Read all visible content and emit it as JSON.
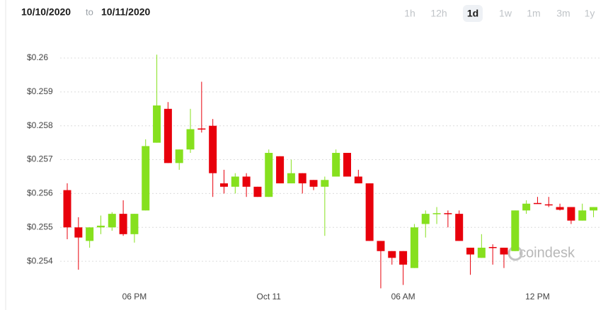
{
  "header": {
    "from_date": "10/10/2020",
    "separator": "to",
    "to_date": "10/11/2020",
    "ranges": [
      "1h",
      "12h",
      "1d",
      "1w",
      "1m",
      "3m",
      "1y"
    ],
    "active_range": "1d"
  },
  "watermark": "coindesk",
  "chart_data": {
    "type": "candlestick",
    "categories": [
      null,
      null,
      null,
      null,
      null,
      null,
      "06 PM",
      null,
      null,
      null,
      null,
      null,
      null,
      null,
      null,
      null,
      null,
      null,
      "Oct 11",
      null,
      null,
      null,
      null,
      null,
      null,
      null,
      null,
      null,
      null,
      null,
      "06 AM",
      null,
      null,
      null,
      null,
      null,
      null,
      null,
      null,
      null,
      null,
      null,
      "12 PM",
      null,
      null,
      null,
      null,
      null
    ],
    "open": [
      0.2561,
      0.255,
      0.2546,
      0.255,
      0.255,
      0.2554,
      0.2548,
      0.2555,
      0.2575,
      0.2585,
      0.2569,
      0.2573,
      0.25792,
      0.258,
      0.2563,
      0.2562,
      0.2565,
      0.2562,
      0.2559,
      0.2571,
      0.2563,
      0.2566,
      0.2564,
      0.2562,
      0.2565,
      0.2572,
      0.2565,
      0.2563,
      0.2546,
      0.2543,
      0.2543,
      0.2538,
      0.2551,
      0.2554,
      0.25542,
      0.2554,
      0.2544,
      0.2541,
      0.25442,
      0.2544,
      0.2543,
      0.2555,
      0.25572,
      0.25568,
      0.2556,
      0.2556,
      0.2552,
      0.2555
    ],
    "high": [
      0.2563,
      0.2553,
      0.255,
      0.25535,
      0.25545,
      0.2558,
      0.2554,
      0.2576,
      0.2601,
      0.2587,
      0.2573,
      0.2585,
      0.2593,
      0.2582,
      0.2567,
      0.2566,
      0.2566,
      0.2562,
      0.2573,
      0.2571,
      0.257,
      0.2566,
      0.2564,
      0.2565,
      0.2573,
      0.2572,
      0.2567,
      0.2563,
      0.2546,
      0.2543,
      0.2543,
      0.2551,
      0.2555,
      0.2556,
      0.2555,
      0.2555,
      0.2544,
      0.2548,
      0.2545,
      0.2544,
      0.2555,
      0.2558,
      0.2559,
      0.2559,
      0.2557,
      0.2556,
      0.2557,
      0.2556
    ],
    "low": [
      0.25465,
      0.25375,
      0.2544,
      0.2548,
      0.2549,
      0.25475,
      0.25455,
      0.2555,
      0.2575,
      0.2569,
      0.2567,
      0.2572,
      0.2578,
      0.2559,
      0.256,
      0.256,
      0.2559,
      0.2559,
      0.2559,
      0.2563,
      0.2563,
      0.256,
      0.2561,
      0.25475,
      0.2565,
      0.2565,
      0.2563,
      0.2546,
      0.2532,
      0.2539,
      0.2533,
      0.2538,
      0.2547,
      0.2551,
      0.255,
      0.2546,
      0.2536,
      0.2541,
      0.2539,
      0.2538,
      0.2543,
      0.2554,
      0.2557,
      0.2556,
      0.2555,
      0.2551,
      0.2552,
      0.2553
    ],
    "close": [
      0.255,
      0.2547,
      0.255,
      0.25505,
      0.2554,
      0.2548,
      0.2554,
      0.2574,
      0.2586,
      0.2569,
      0.2573,
      0.2579,
      0.2579,
      0.2566,
      0.2562,
      0.2565,
      0.2562,
      0.2559,
      0.2572,
      0.2563,
      0.2566,
      0.2563,
      0.2562,
      0.2564,
      0.2572,
      0.2565,
      0.2563,
      0.2546,
      0.2543,
      0.2541,
      0.2539,
      0.255,
      0.2554,
      0.25542,
      0.2554,
      0.2546,
      0.2542,
      0.2544,
      0.2544,
      0.2542,
      0.2555,
      0.2557,
      0.2557,
      0.25566,
      0.25552,
      0.2552,
      0.2555,
      0.2556
    ],
    "up_color": "#86e01e",
    "down_color": "#e8000b",
    "ylim": [
      0.25325,
      0.26046
    ],
    "yticks": [
      {
        "value": 0.254,
        "label": "$0.254"
      },
      {
        "value": 0.255,
        "label": "$0.255"
      },
      {
        "value": 0.256,
        "label": "$0.256"
      },
      {
        "value": 0.257,
        "label": "$0.257"
      },
      {
        "value": 0.258,
        "label": "$0.258"
      },
      {
        "value": 0.259,
        "label": "$0.259"
      },
      {
        "value": 0.26,
        "label": "$0.26"
      }
    ],
    "grid": true
  }
}
